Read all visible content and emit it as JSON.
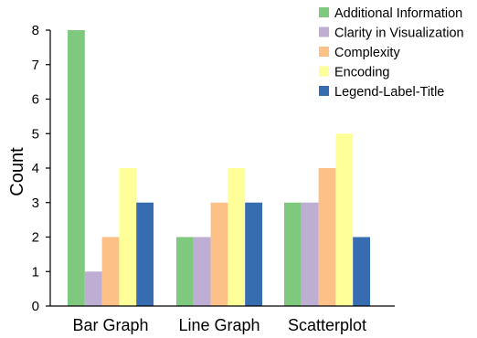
{
  "chart_data": {
    "type": "bar",
    "categories": [
      "Bar Graph",
      "Line Graph",
      "Scatterplot"
    ],
    "series": [
      {
        "name": "Additional Information",
        "color": "#7fc97f",
        "values": [
          8,
          2,
          3
        ]
      },
      {
        "name": "Clarity in Visualization",
        "color": "#beaed4",
        "values": [
          1,
          2,
          3
        ]
      },
      {
        "name": "Complexity",
        "color": "#fdc086",
        "values": [
          2,
          3,
          4
        ]
      },
      {
        "name": "Encoding",
        "color": "#ffff99",
        "values": [
          4,
          4,
          5
        ]
      },
      {
        "name": "Legend-Label-Title",
        "color": "#386cb0",
        "values": [
          3,
          3,
          2
        ]
      }
    ],
    "title": "",
    "xlabel": "",
    "ylabel": "Count",
    "ylim": [
      0,
      8
    ],
    "yticks": [
      0,
      1,
      2,
      3,
      4,
      5,
      6,
      7,
      8
    ],
    "grid": false,
    "legend_position": "top-right"
  }
}
